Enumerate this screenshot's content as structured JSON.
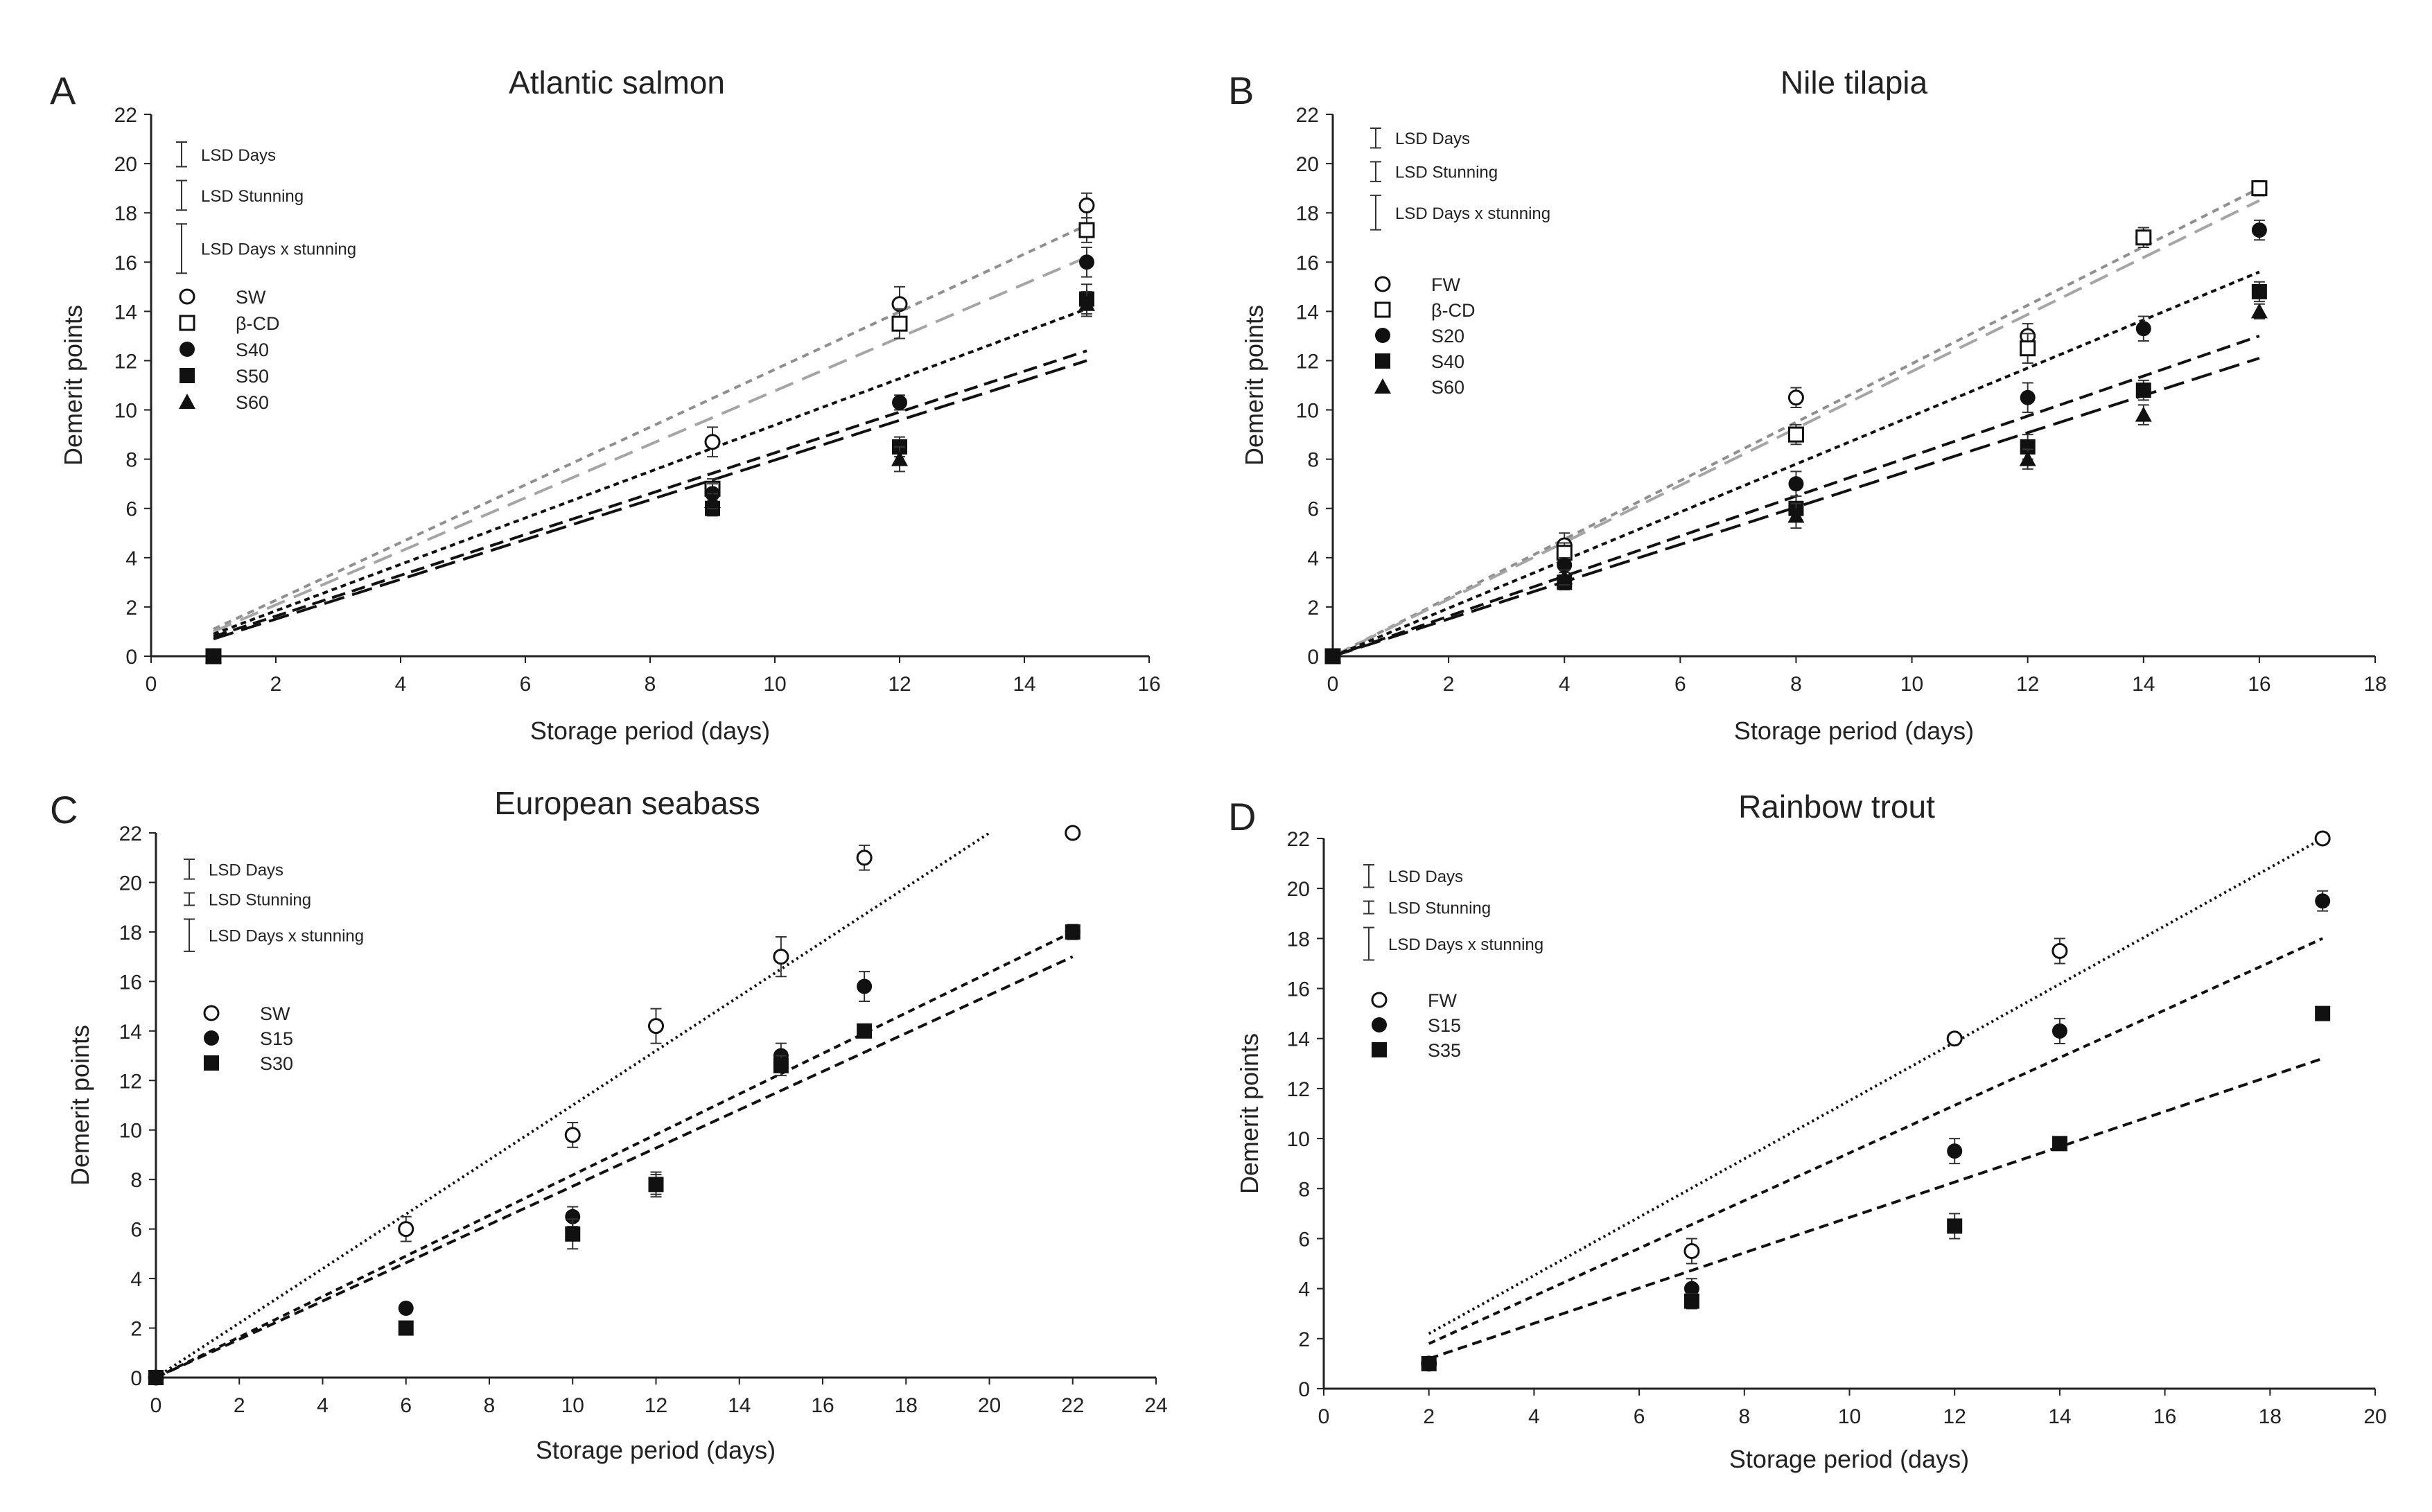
{
  "chart_data": [
    {
      "type": "scatter",
      "panel_label": "A",
      "title": "Atlantic salmon",
      "xlabel": "Storage period (days)",
      "ylabel": "Demerit points",
      "xlim": [
        0,
        16
      ],
      "xticks": [
        0,
        2,
        4,
        6,
        8,
        10,
        12,
        14,
        16
      ],
      "ylim": [
        0,
        22
      ],
      "yticks": [
        0,
        2,
        4,
        6,
        8,
        10,
        12,
        14,
        16,
        18,
        20,
        22
      ],
      "lsd": [
        {
          "label": "LSD Days",
          "value": 1.0
        },
        {
          "label": "LSD Stunning",
          "value": 1.2
        },
        {
          "label": "LSD Days x stunning",
          "value": 2.0
        }
      ],
      "series": [
        {
          "name": "SW",
          "marker": "circle-open",
          "x": [
            1,
            9,
            12,
            15
          ],
          "y": [
            0,
            8.7,
            14.3,
            18.3
          ],
          "err": [
            0,
            0.6,
            0.7,
            0.5
          ],
          "fit": {
            "x": [
              1,
              15
            ],
            "y": [
              1.1,
              17.5
            ],
            "dash": "10 8",
            "color": "#8f8f8f"
          }
        },
        {
          "name": "β-CD",
          "marker": "square-open",
          "x": [
            1,
            9,
            12,
            15
          ],
          "y": [
            0,
            6.8,
            13.5,
            17.3
          ],
          "err": [
            0,
            0.4,
            0.6,
            0.5
          ],
          "fit": {
            "x": [
              1,
              15
            ],
            "y": [
              1.0,
              16.2
            ],
            "dash": "28 14",
            "color": "#a5a5a5"
          }
        },
        {
          "name": "S40",
          "marker": "circle-filled",
          "x": [
            1,
            9,
            12,
            15
          ],
          "y": [
            0,
            6.6,
            10.3,
            16.0
          ],
          "err": [
            0,
            0.4,
            0.3,
            0.6
          ],
          "fit": {
            "x": [
              1,
              15
            ],
            "y": [
              0.9,
              14.1
            ],
            "dash": "8 6",
            "color": "#111111"
          }
        },
        {
          "name": "S50",
          "marker": "square-filled",
          "x": [
            1,
            9,
            12,
            15
          ],
          "y": [
            0,
            6.0,
            8.5,
            14.5
          ],
          "err": [
            0,
            0.3,
            0.4,
            0.6
          ],
          "fit": {
            "x": [
              1,
              15
            ],
            "y": [
              0.8,
              12.4
            ],
            "dash": "20 10",
            "color": "#111111"
          }
        },
        {
          "name": "S60",
          "marker": "triangle-filled",
          "x": [
            1,
            9,
            12,
            15
          ],
          "y": [
            0,
            6.3,
            8.0,
            14.3
          ],
          "err": [
            0,
            0.3,
            0.5,
            0.5
          ],
          "fit": {
            "x": [
              1,
              15
            ],
            "y": [
              0.7,
              12.0
            ],
            "dash": "30 12",
            "color": "#111111"
          }
        }
      ]
    },
    {
      "type": "scatter",
      "panel_label": "B",
      "title": "Nile tilapia",
      "xlabel": "Storage period (days)",
      "ylabel": "Demerit points",
      "xlim": [
        0,
        18
      ],
      "xticks": [
        0,
        2,
        4,
        6,
        8,
        10,
        12,
        14,
        16,
        18
      ],
      "ylim": [
        0,
        22
      ],
      "yticks": [
        0,
        2,
        4,
        6,
        8,
        10,
        12,
        14,
        16,
        18,
        20,
        22
      ],
      "lsd": [
        {
          "label": "LSD Days",
          "value": 0.8
        },
        {
          "label": "LSD Stunning",
          "value": 0.8
        },
        {
          "label": "LSD Days x stunning",
          "value": 1.4
        }
      ],
      "series": [
        {
          "name": "FW",
          "marker": "circle-open",
          "x": [
            0,
            4,
            8,
            12,
            14,
            16
          ],
          "y": [
            0,
            4.5,
            10.5,
            13.0,
            17.0,
            19.0
          ],
          "err": [
            0,
            0.5,
            0.4,
            0.5,
            0.4,
            0.3
          ],
          "fit": {
            "x": [
              0,
              16
            ],
            "y": [
              0,
              19.0
            ],
            "dash": "10 8",
            "color": "#8f8f8f"
          }
        },
        {
          "name": "β-CD",
          "marker": "square-open",
          "x": [
            0,
            4,
            8,
            12,
            14,
            16
          ],
          "y": [
            0,
            4.2,
            9.0,
            12.5,
            17.0,
            19.0
          ],
          "err": [
            0,
            0.4,
            0.4,
            0.6,
            0.4,
            0.3
          ],
          "fit": {
            "x": [
              0,
              16
            ],
            "y": [
              0,
              18.5
            ],
            "dash": "28 14",
            "color": "#a5a5a5"
          }
        },
        {
          "name": "S20",
          "marker": "circle-filled",
          "x": [
            0,
            4,
            8,
            12,
            14,
            16
          ],
          "y": [
            0,
            3.7,
            7.0,
            10.5,
            13.3,
            17.3
          ],
          "err": [
            0,
            0.3,
            0.5,
            0.6,
            0.5,
            0.4
          ],
          "fit": {
            "x": [
              0,
              16
            ],
            "y": [
              0,
              15.6
            ],
            "dash": "8 6",
            "color": "#111111"
          }
        },
        {
          "name": "S40",
          "marker": "square-filled",
          "x": [
            0,
            4,
            8,
            12,
            14,
            16
          ],
          "y": [
            0,
            3.0,
            6.0,
            8.5,
            10.8,
            14.8
          ],
          "err": [
            0,
            0.3,
            0.5,
            0.5,
            0.4,
            0.4
          ],
          "fit": {
            "x": [
              0,
              16
            ],
            "y": [
              0,
              13.0
            ],
            "dash": "20 10",
            "color": "#111111"
          }
        },
        {
          "name": "S60",
          "marker": "triangle-filled",
          "x": [
            0,
            4,
            8,
            12,
            14,
            16
          ],
          "y": [
            0,
            3.2,
            5.7,
            8.0,
            9.8,
            14.0
          ],
          "err": [
            0,
            0.3,
            0.5,
            0.4,
            0.4,
            0.3
          ],
          "fit": {
            "x": [
              0,
              16
            ],
            "y": [
              0,
              12.1
            ],
            "dash": "30 12",
            "color": "#111111"
          }
        }
      ]
    },
    {
      "type": "scatter",
      "panel_label": "C",
      "title": "European seabass",
      "xlabel": "Storage period (days)",
      "ylabel": "Demerit points",
      "xlim": [
        0,
        24
      ],
      "xticks": [
        0,
        2,
        4,
        6,
        8,
        10,
        12,
        14,
        16,
        18,
        20,
        22,
        24
      ],
      "ylim": [
        0,
        22
      ],
      "yticks": [
        0,
        2,
        4,
        6,
        8,
        10,
        12,
        14,
        16,
        18,
        20,
        22
      ],
      "lsd": [
        {
          "label": "LSD Days",
          "value": 0.8
        },
        {
          "label": "LSD Stunning",
          "value": 0.5
        },
        {
          "label": "LSD Days x stunning",
          "value": 1.3
        }
      ],
      "series": [
        {
          "name": "SW",
          "marker": "circle-open",
          "x": [
            0,
            6,
            10,
            12,
            15,
            17,
            22
          ],
          "y": [
            0,
            6.0,
            9.8,
            14.2,
            17.0,
            21.0,
            22.0
          ],
          "err": [
            0,
            0.5,
            0.5,
            0.7,
            0.8,
            0.5,
            0
          ],
          "fit": {
            "x": [
              0,
              20
            ],
            "y": [
              0,
              22.0
            ],
            "dash": "3 5",
            "color": "#111111"
          }
        },
        {
          "name": "S15",
          "marker": "circle-filled",
          "x": [
            0,
            6,
            10,
            12,
            15,
            17,
            22
          ],
          "y": [
            0,
            2.8,
            6.5,
            7.8,
            13.0,
            15.8,
            18.0
          ],
          "err": [
            0,
            0,
            0.4,
            0.5,
            0.5,
            0.6,
            0
          ],
          "fit": {
            "x": [
              0,
              22
            ],
            "y": [
              0,
              18.0
            ],
            "dash": "10 7",
            "color": "#111111"
          }
        },
        {
          "name": "S30",
          "marker": "square-filled",
          "x": [
            0,
            6,
            10,
            12,
            15,
            17,
            22
          ],
          "y": [
            0,
            2.0,
            5.8,
            7.8,
            12.6,
            14.0,
            18.0
          ],
          "err": [
            0,
            0,
            0.6,
            0.4,
            0.4,
            0,
            0.3
          ],
          "fit": {
            "x": [
              0,
              22
            ],
            "y": [
              0,
              17.0
            ],
            "dash": "14 8",
            "color": "#111111"
          }
        }
      ]
    },
    {
      "type": "scatter",
      "panel_label": "D",
      "title": "Rainbow trout",
      "xlabel": "Storage period (days)",
      "ylabel": "Demerit points",
      "xlim": [
        0,
        20
      ],
      "xticks": [
        0,
        2,
        4,
        6,
        8,
        10,
        12,
        14,
        16,
        18,
        20
      ],
      "ylim": [
        0,
        22
      ],
      "yticks": [
        0,
        2,
        4,
        6,
        8,
        10,
        12,
        14,
        16,
        18,
        20,
        22
      ],
      "lsd": [
        {
          "label": "LSD Days",
          "value": 0.9
        },
        {
          "label": "LSD Stunning",
          "value": 0.5
        },
        {
          "label": "LSD Days x stunning",
          "value": 1.3
        }
      ],
      "series": [
        {
          "name": "FW",
          "marker": "circle-open",
          "x": [
            2,
            7,
            12,
            14,
            19
          ],
          "y": [
            1.0,
            5.5,
            14.0,
            17.5,
            22.0
          ],
          "err": [
            0,
            0.5,
            0,
            0.5,
            0
          ],
          "fit": {
            "x": [
              2,
              19
            ],
            "y": [
              2.2,
              22.0
            ],
            "dash": "3 5",
            "color": "#111111"
          }
        },
        {
          "name": "S15",
          "marker": "circle-filled",
          "x": [
            2,
            7,
            12,
            14,
            19
          ],
          "y": [
            1.0,
            4.0,
            9.5,
            14.3,
            19.5
          ],
          "err": [
            0,
            0.4,
            0.5,
            0.5,
            0.4
          ],
          "fit": {
            "x": [
              2,
              19
            ],
            "y": [
              1.8,
              18.0
            ],
            "dash": "10 7",
            "color": "#111111"
          }
        },
        {
          "name": "S35",
          "marker": "square-filled",
          "x": [
            2,
            7,
            12,
            14,
            19
          ],
          "y": [
            1.0,
            3.5,
            6.5,
            9.8,
            15.0
          ],
          "err": [
            0,
            0.3,
            0.5,
            0,
            0
          ],
          "fit": {
            "x": [
              2,
              19
            ],
            "y": [
              1.2,
              13.2
            ],
            "dash": "14 8",
            "color": "#111111"
          }
        }
      ]
    }
  ]
}
